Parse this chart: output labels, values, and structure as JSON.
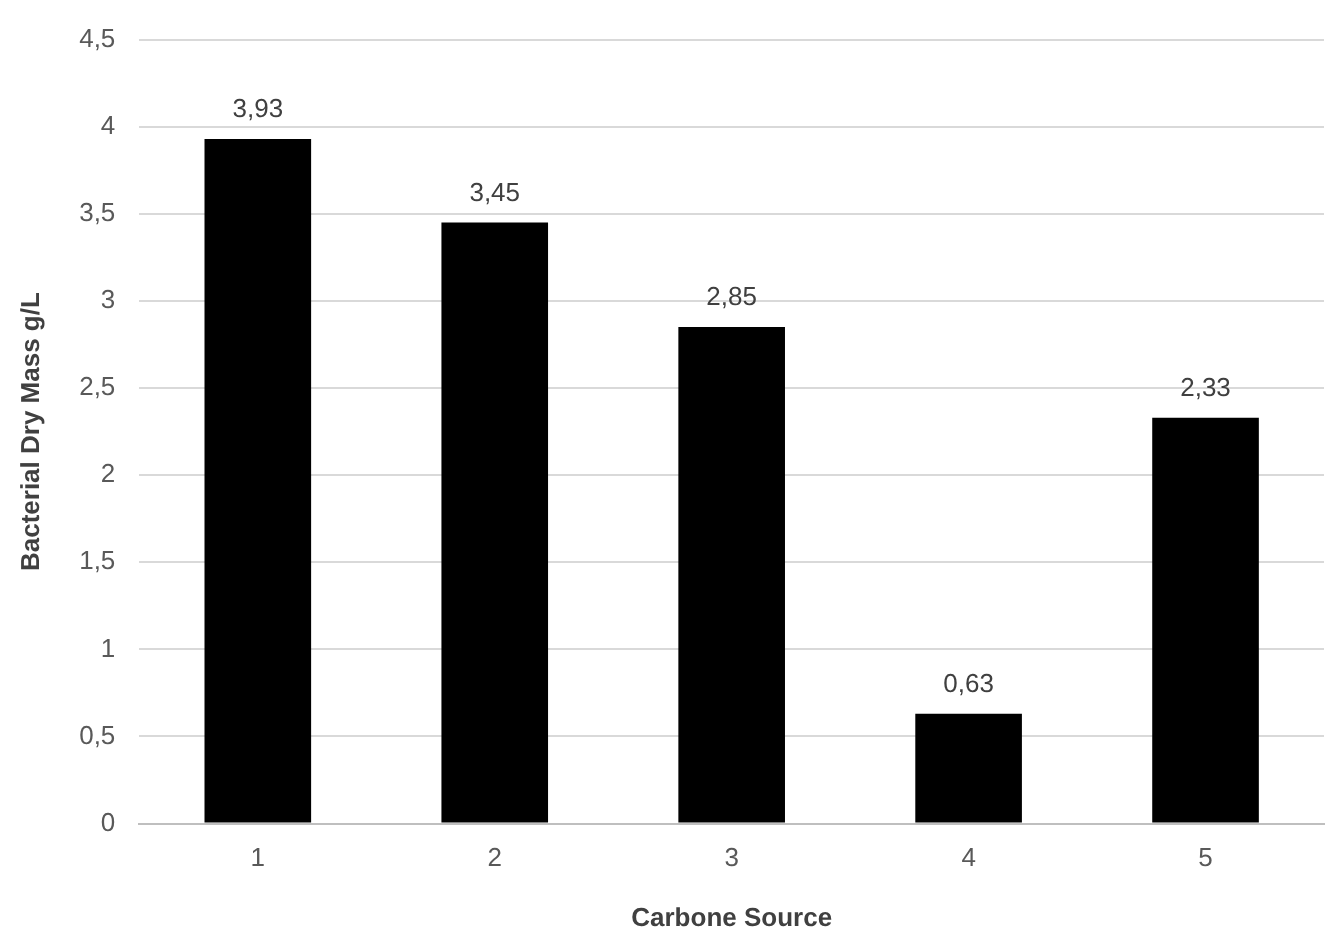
{
  "chart_data": {
    "type": "bar",
    "xlabel": "Carbone Source",
    "ylabel": "Bacterial Dry Mass g/L",
    "categories": [
      "1",
      "2",
      "3",
      "4",
      "5"
    ],
    "values": [
      3.93,
      3.45,
      2.85,
      0.63,
      2.33
    ],
    "value_labels": [
      "3,93",
      "3,45",
      "2,85",
      "0,63",
      "2,33"
    ],
    "color": "#000000",
    "ylim": [
      0,
      4.5
    ],
    "yticks": [
      0,
      {
        "value": 0.5,
        "label": "0,5"
      },
      1,
      {
        "value": 1.5,
        "label": "1,5"
      },
      2,
      {
        "value": 2.5,
        "label": "2,5"
      },
      3,
      {
        "value": 3.5,
        "label": "3,5"
      },
      4,
      {
        "value": 4.5,
        "label": "4,5"
      }
    ],
    "grid": "y",
    "legend": false
  }
}
